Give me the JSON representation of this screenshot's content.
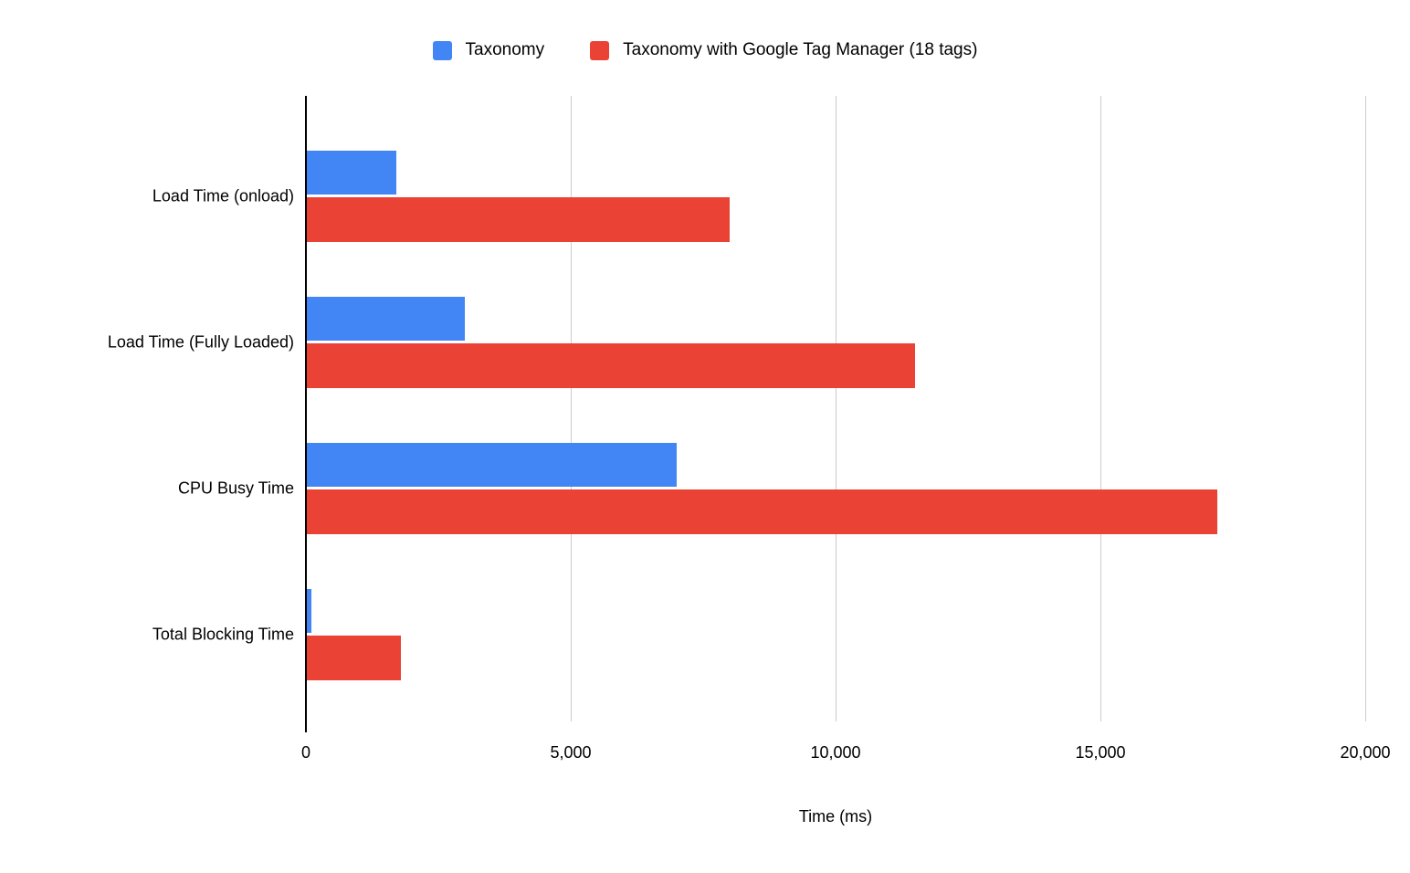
{
  "legend": {
    "items": [
      {
        "label": "Taxonomy",
        "color": "#4285F4"
      },
      {
        "label": "Taxonomy with Google Tag Manager (18 tags)",
        "color": "#EA4335"
      }
    ]
  },
  "chart_data": {
    "type": "bar",
    "orientation": "horizontal",
    "title": "",
    "xlabel": "Time (ms)",
    "ylabel": "",
    "categories": [
      "Load Time (onload)",
      "Load Time (Fully Loaded)",
      "CPU Busy Time",
      "Total Blocking Time"
    ],
    "series": [
      {
        "name": "Taxonomy",
        "color": "#4285F4",
        "values": [
          1700,
          3000,
          7000,
          100
        ]
      },
      {
        "name": "Taxonomy with Google Tag Manager (18 tags)",
        "color": "#EA4335",
        "values": [
          8000,
          11500,
          17200,
          1800
        ]
      }
    ],
    "xlim": [
      0,
      20000
    ],
    "xticks": [
      0,
      5000,
      10000,
      15000,
      20000
    ],
    "xtick_labels": [
      "0",
      "5,000",
      "10,000",
      "15,000",
      "20,000"
    ],
    "grid": true,
    "legend_position": "top",
    "axis_color": "#000000",
    "gridline_color": "#cccccc"
  }
}
